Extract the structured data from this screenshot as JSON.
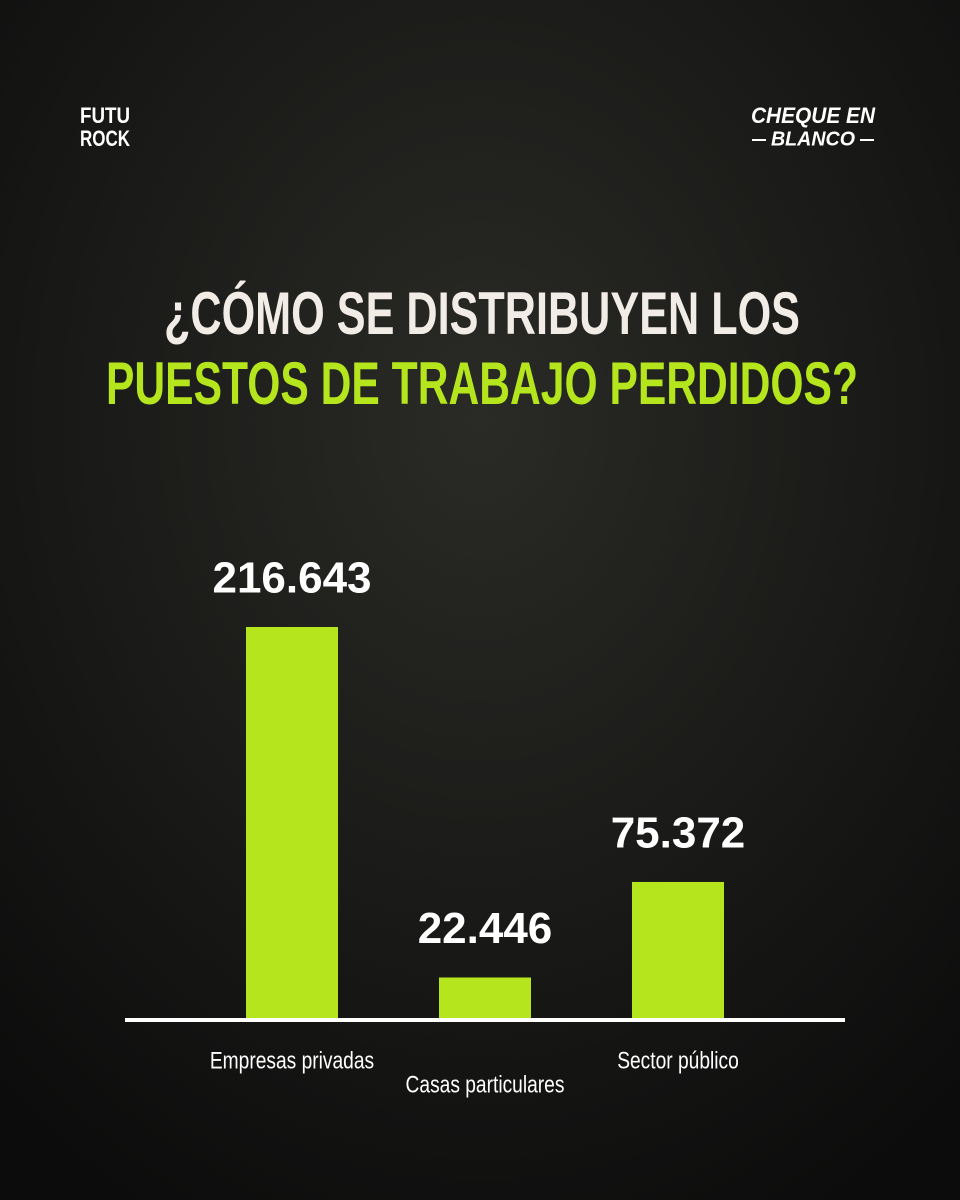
{
  "logos": {
    "left": [
      "FUTU",
      "ROCK"
    ],
    "right": [
      "CHEQUE EN",
      "BLANCO"
    ]
  },
  "chart_data": {
    "type": "bar",
    "title": [
      "¿CÓMO SE DISTRIBUYEN LOS",
      "PUESTOS DE TRABAJO PERDIDOS?"
    ],
    "title_colors": [
      "#f2ece6",
      "#b5e61d"
    ],
    "categories": [
      "Empresas privadas",
      "Casas particulares",
      "Sector público"
    ],
    "values": [
      216643,
      22446,
      75372
    ],
    "value_labels": [
      "216.643",
      "22.446",
      "75.372"
    ],
    "color": "#b5e61d"
  }
}
